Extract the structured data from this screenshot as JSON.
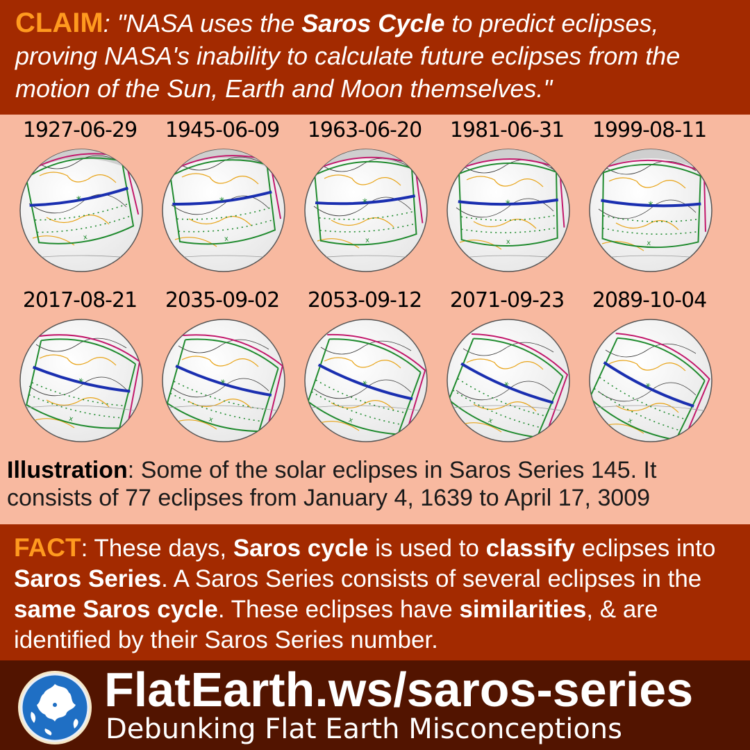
{
  "claim": {
    "label": "CLAIM",
    "text_1": ": \"NASA uses the ",
    "bold": "Saros Cycle",
    "text_2": " to predict eclipses, proving NASA's inability to calculate future eclipses from the motion of the Sun, Earth and Moon themselves.\""
  },
  "eclipses": [
    "1927-06-29",
    "1945-06-09",
    "1963-06-20",
    "1981-06-31",
    "1999-08-11",
    "2017-08-21",
    "2035-09-02",
    "2053-09-12",
    "2071-09-23",
    "2089-10-04"
  ],
  "caption": {
    "label": "Illustration",
    "text": ": Some of the solar eclipses in Saros Series 145. It consists of 77 eclipses from January 4, 1639 to April 17, 3009"
  },
  "fact": {
    "label": "FACT",
    "t1": ": These days, ",
    "b1": "Saros cycle",
    "t2": " is used to ",
    "b2": "classify",
    "t3": " eclipses into ",
    "b3": "Saros Series",
    "t4": ". A Saros Series consists of several eclipses in the ",
    "b4": "same Saros cycle",
    "t5": ". These eclipses have ",
    "b5": "similarities",
    "t6": ", & are identified by their Saros Series number."
  },
  "footer": {
    "url": "FlatEarth.ws/saros-series",
    "tagline": "Debunking Flat Earth Misconceptions"
  },
  "colors": {
    "header_bg": "#a32a00",
    "label_orange": "#ff9a1f",
    "body_bg": "#f8b9a0",
    "footer_bg": "#521400",
    "central_path": "#1a2fb0",
    "umbra_limits": "#1f8a2e",
    "penumbra_limits": "#c2186b",
    "borders": "#e8a316"
  }
}
